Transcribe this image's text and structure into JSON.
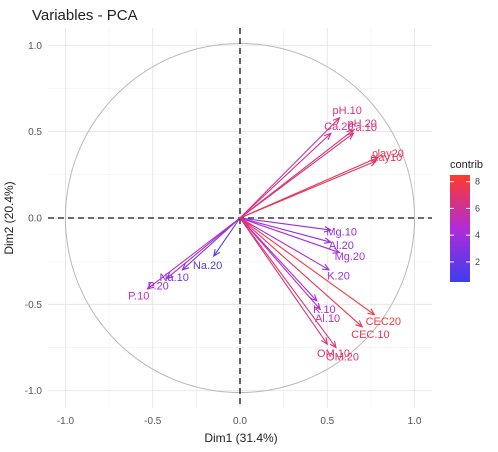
{
  "chart_data": {
    "type": "pca-variables",
    "title": "Variables - PCA",
    "xlabel": "Dim1 (31.4%)",
    "ylabel": "Dim2 (20.4%)",
    "xlim": [
      -1.1,
      1.1
    ],
    "ylim": [
      -1.1,
      1.1
    ],
    "xticks": [
      "-1.0",
      "-0.5",
      "0.0",
      "0.5",
      "1.0"
    ],
    "yticks": [
      "1.0",
      "0.5",
      "0.0",
      "-0.5",
      "-1.0"
    ],
    "grid": true,
    "unit_circle": true,
    "legend": {
      "title": "contrib",
      "position": "right",
      "ticks": [
        "8",
        "6",
        "4",
        "2"
      ],
      "range": [
        0.5,
        8.5
      ]
    },
    "color_scale": {
      "low": "#3d3df0",
      "mid": "#b02cd8",
      "high": "#ff3a2a"
    },
    "variables": [
      {
        "name": "pH.10",
        "x": 0.57,
        "y": 0.58,
        "contrib": 6.5
      },
      {
        "name": "pH.20",
        "x": 0.65,
        "y": 0.51,
        "contrib": 6.8
      },
      {
        "name": "Ca.20",
        "x": 0.52,
        "y": 0.49,
        "contrib": 6.0
      },
      {
        "name": "Ca.10",
        "x": 0.65,
        "y": 0.49,
        "contrib": 6.6
      },
      {
        "name": "clay20",
        "x": 0.79,
        "y": 0.35,
        "contrib": 7.5
      },
      {
        "name": "clay10",
        "x": 0.78,
        "y": 0.33,
        "contrib": 7.3
      },
      {
        "name": "Mg.10",
        "x": 0.52,
        "y": -0.07,
        "contrib": 3.5
      },
      {
        "name": "Al.20",
        "x": 0.52,
        "y": -0.14,
        "contrib": 3.6
      },
      {
        "name": "Mg.20",
        "x": 0.57,
        "y": -0.2,
        "contrib": 4.3
      },
      {
        "name": "K.20",
        "x": 0.51,
        "y": -0.3,
        "contrib": 4.0
      },
      {
        "name": "K.10",
        "x": 0.44,
        "y": -0.48,
        "contrib": 4.6
      },
      {
        "name": "Al.10",
        "x": 0.46,
        "y": -0.53,
        "contrib": 5.2
      },
      {
        "name": "CEC20",
        "x": 0.77,
        "y": -0.56,
        "contrib": 8.0
      },
      {
        "name": "CEC.10",
        "x": 0.7,
        "y": -0.63,
        "contrib": 7.7
      },
      {
        "name": "OM.10",
        "x": 0.5,
        "y": -0.73,
        "contrib": 6.8
      },
      {
        "name": "OM.20",
        "x": 0.55,
        "y": -0.75,
        "contrib": 7.0
      },
      {
        "name": "Na.20",
        "x": -0.15,
        "y": -0.22,
        "contrib": 1.2
      },
      {
        "name": "Na.10",
        "x": -0.33,
        "y": -0.3,
        "contrib": 3.0
      },
      {
        "name": "P.20",
        "x": -0.42,
        "y": -0.35,
        "contrib": 3.7
      },
      {
        "name": "P.10",
        "x": -0.53,
        "y": -0.41,
        "contrib": 5.3
      }
    ]
  }
}
